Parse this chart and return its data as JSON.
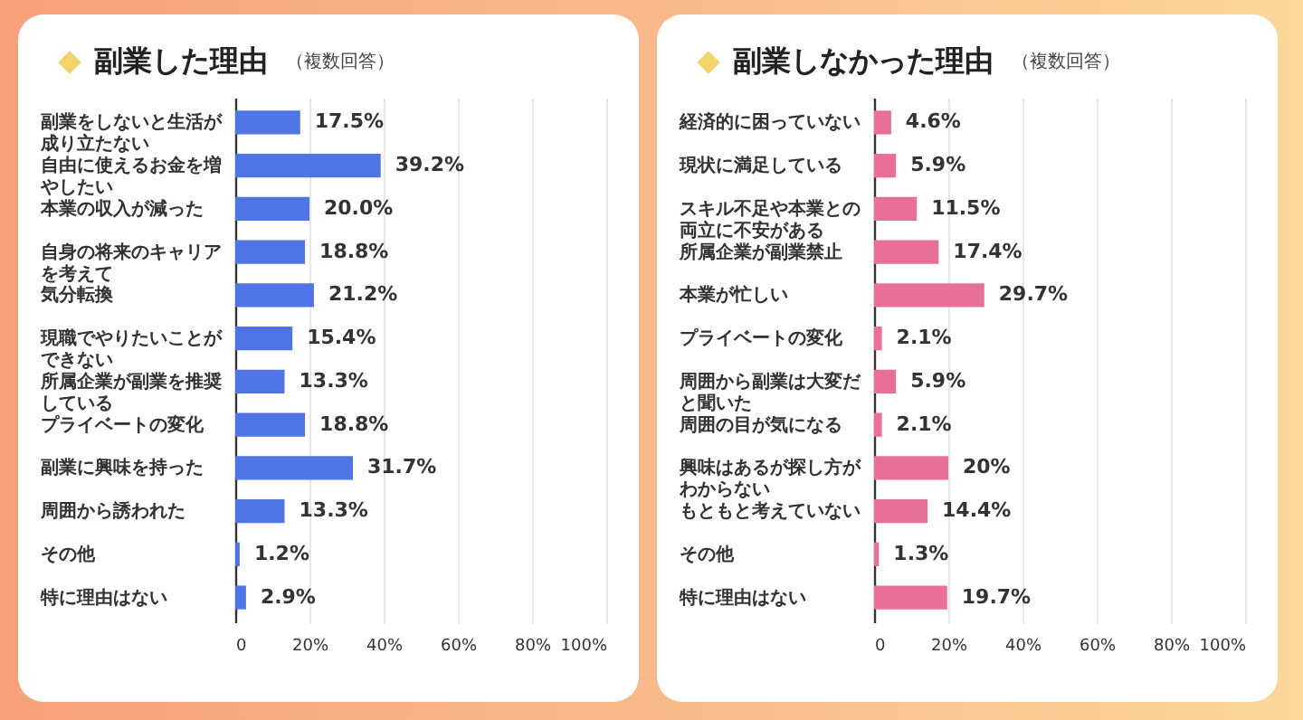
{
  "chart_data": [
    {
      "type": "bar",
      "orientation": "horizontal",
      "title": "副業した理由",
      "subtitle": "（複数回答）",
      "color": "#4f74e3",
      "grid": "x",
      "xlim": [
        0,
        100
      ],
      "xticks": [
        0,
        {
          "value": 20,
          "label": "20%"
        },
        {
          "value": 40,
          "label": "40%"
        },
        {
          "value": 60,
          "label": "60%"
        },
        {
          "value": 80,
          "label": "80%"
        },
        {
          "value": 100,
          "label": "100%"
        }
      ],
      "categories": [
        "副業をしないと生活が成り立たない",
        "自由に使えるお金を増やしたい",
        "本業の収入が減った",
        "自身の将来のキャリアを考えて",
        "気分転換",
        "現職でやりたいことができない",
        "所属企業が副業を推奨している",
        "プライベートの変化",
        "副業に興味を持った",
        "周囲から誘われた",
        "その他",
        "特に理由はない"
      ],
      "values": [
        17.5,
        39.2,
        20.0,
        18.8,
        21.2,
        15.4,
        13.3,
        18.8,
        31.7,
        13.3,
        1.2,
        2.9
      ],
      "value_labels": [
        "17.5%",
        "39.2%",
        "20.0%",
        "18.8%",
        "21.2%",
        "15.4%",
        "13.3%",
        "18.8%",
        "31.7%",
        "13.3%",
        "1.2%",
        "2.9%"
      ]
    },
    {
      "type": "bar",
      "orientation": "horizontal",
      "title": "副業しなかった理由",
      "subtitle": "（複数回答）",
      "color": "#e86f98",
      "grid": "x",
      "xlim": [
        0,
        100
      ],
      "xticks": [
        0,
        {
          "value": 20,
          "label": "20%"
        },
        {
          "value": 40,
          "label": "40%"
        },
        {
          "value": 60,
          "label": "60%"
        },
        {
          "value": 80,
          "label": "80%"
        },
        {
          "value": 100,
          "label": "100%"
        }
      ],
      "categories": [
        "経済的に困っていない",
        "現状に満足している",
        "スキル不足や本業との両立に不安がある",
        "所属企業が副業禁止",
        "本業が忙しい",
        "プライベートの変化",
        "周囲から副業は大変だと聞いた",
        "周囲の目が気になる",
        "興味はあるが探し方がわからない",
        "もともと考えていない",
        "その他",
        "特に理由はない"
      ],
      "values": [
        4.6,
        5.9,
        11.5,
        17.4,
        29.7,
        2.1,
        5.9,
        2.1,
        20,
        14.4,
        1.3,
        19.7
      ],
      "value_labels": [
        "4.6%",
        "5.9%",
        "11.5%",
        "17.4%",
        "29.7%",
        "2.1%",
        "5.9%",
        "2.1%",
        "20%",
        "14.4%",
        "1.3%",
        "19.7%"
      ]
    }
  ]
}
